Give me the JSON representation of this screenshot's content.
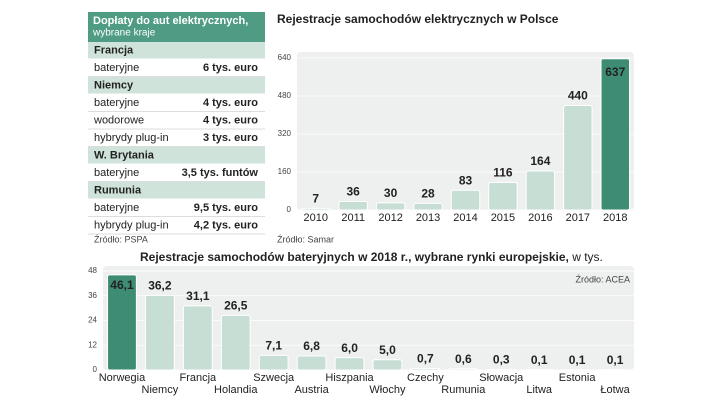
{
  "table": {
    "title": "Dopłaty do aut elektrycznych,",
    "subtitle": "wybrane kraje",
    "groups": [
      {
        "country": "Francja",
        "rows": [
          [
            "bateryjne",
            "6 tys. euro"
          ]
        ]
      },
      {
        "country": "Niemcy",
        "rows": [
          [
            "bateryjne",
            "4 tys. euro"
          ],
          [
            "wodorowe",
            "4 tys. euro"
          ],
          [
            "hybrydy plug-in",
            "3 tys. euro"
          ]
        ]
      },
      {
        "country": "W. Brytania",
        "rows": [
          [
            "bateryjne",
            "3,5 tys. funtów"
          ]
        ]
      },
      {
        "country": "Rumunia",
        "rows": [
          [
            "bateryjne",
            "9,5 tys. euro"
          ],
          [
            "hybrydy plug-in",
            "4,2 tys. euro"
          ]
        ]
      }
    ],
    "source": "Źródło: PSPA"
  },
  "chart_data": [
    {
      "type": "bar",
      "title": "Rejestracje samochodów elektrycznych w Polsce",
      "source": "Źródło: Samar",
      "categories": [
        "2010",
        "2011",
        "2012",
        "2013",
        "2014",
        "2015",
        "2016",
        "2017",
        "2018"
      ],
      "values": [
        7,
        36,
        30,
        28,
        83,
        116,
        164,
        440,
        637
      ],
      "colors": [
        "#c6ded4",
        "#c6ded4",
        "#c6ded4",
        "#c6ded4",
        "#c6ded4",
        "#c6ded4",
        "#c6ded4",
        "#c6ded4",
        "#3e8c74"
      ],
      "ylim": [
        0,
        640
      ],
      "yticks": [
        0,
        160,
        320,
        480,
        640
      ],
      "grid": true
    },
    {
      "type": "bar",
      "title": "Rejestracje samochodów bateryjnych w 2018 r., wybrane rynki europejskie,",
      "unit": "w tys.",
      "source": "Źródło: ACEA",
      "categories": [
        "Norwegia",
        "Niemcy",
        "Francja",
        "Holandia",
        "Szwecja",
        "Austria",
        "Hiszpania",
        "Włochy",
        "Czechy",
        "Rumunia",
        "Słowacja",
        "Litwa",
        "Estonia",
        "Łotwa"
      ],
      "values": [
        46.1,
        36.2,
        31.1,
        26.5,
        7.1,
        6.8,
        6.0,
        5.0,
        0.7,
        0.6,
        0.3,
        0.1,
        0.1,
        0.1
      ],
      "value_labels": [
        "46,1",
        "36,2",
        "31,1",
        "26,5",
        "7,1",
        "6,8",
        "6,0",
        "5,0",
        "0,7",
        "0,6",
        "0,3",
        "0,1",
        "0,1",
        "0,1"
      ],
      "colors": [
        "#3e8c74",
        "#c6ded4",
        "#c6ded4",
        "#c6ded4",
        "#c6ded4",
        "#c6ded4",
        "#c6ded4",
        "#c6ded4",
        "#c6ded4",
        "#c6ded4",
        "#c6ded4",
        "#c6ded4",
        "#c6ded4",
        "#c6ded4"
      ],
      "ylim": [
        0,
        48
      ],
      "yticks": [
        0,
        12,
        24,
        36,
        48
      ],
      "grid": true
    }
  ]
}
